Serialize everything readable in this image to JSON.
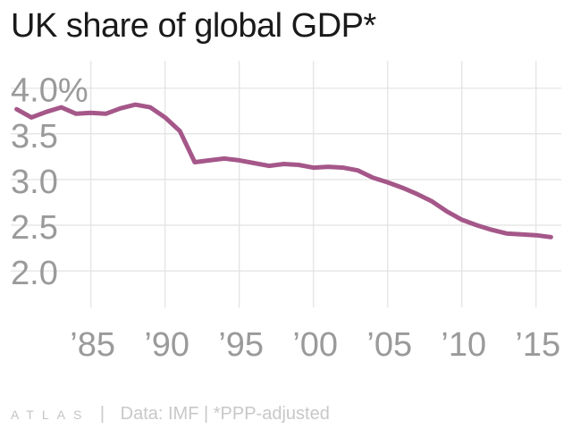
{
  "chart_data": {
    "type": "line",
    "title": "UK share of global GDP*",
    "xlabel": "",
    "ylabel": "",
    "y_tick_labels": [
      "4.0%",
      "3.5",
      "3.0",
      "2.5",
      "2.0"
    ],
    "y_ticks": [
      4.0,
      3.5,
      3.0,
      2.5,
      2.0
    ],
    "ylim": [
      1.6,
      4.3
    ],
    "x_tick_labels": [
      "’85",
      "’90",
      "’95",
      "’00",
      "’05",
      "’10",
      "’15"
    ],
    "x_ticks": [
      1985,
      1990,
      1995,
      2000,
      2005,
      2010,
      2015
    ],
    "xlim": [
      1979.6,
      2016.7
    ],
    "grid": true,
    "line_color": "#a55789",
    "series": [
      {
        "x": [
          1980,
          1981,
          1982,
          1983,
          1984,
          1985,
          1986,
          1987,
          1988,
          1989,
          1990,
          1991,
          1992,
          1993,
          1994,
          1995,
          1996,
          1997,
          1998,
          1999,
          2000,
          2001,
          2002,
          2003,
          2004,
          2005,
          2006,
          2007,
          2008,
          2009,
          2010,
          2011,
          2012,
          2013,
          2014,
          2015,
          2016
        ],
        "values": [
          3.77,
          3.68,
          3.74,
          3.79,
          3.72,
          3.73,
          3.72,
          3.78,
          3.82,
          3.79,
          3.68,
          3.53,
          3.19,
          3.21,
          3.23,
          3.21,
          3.18,
          3.15,
          3.17,
          3.16,
          3.13,
          3.14,
          3.13,
          3.1,
          3.02,
          2.97,
          2.91,
          2.84,
          2.76,
          2.65,
          2.56,
          2.5,
          2.45,
          2.41,
          2.4,
          2.39,
          2.37
        ]
      }
    ]
  },
  "footer": {
    "brand": "ATLAS",
    "separator": "|",
    "source": "Data: IMF | *PPP-adjusted"
  }
}
